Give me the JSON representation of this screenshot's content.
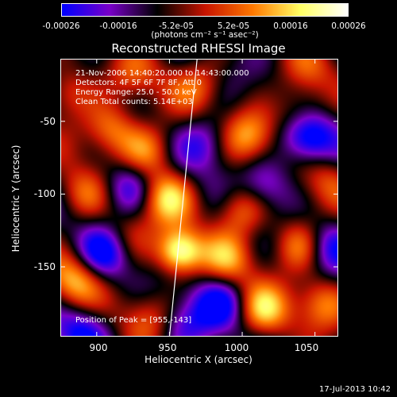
{
  "chart_data": {
    "type": "heatmap",
    "title": "Reconstructed RHESSI Image",
    "xlabel": "Heliocentric X (arcsec)",
    "ylabel": "Heliocentric Y (arcsec)",
    "xlim": [
      875,
      1066
    ],
    "ylim": [
      -198,
      -7
    ],
    "x_ticks": [
      "900",
      "950",
      "1000",
      "1050"
    ],
    "y_ticks": [
      "-50",
      "-100",
      "-150"
    ],
    "colorbar": {
      "ticks": [
        "-0.00026",
        "-0.00016",
        "-5.2e-05",
        "5.2e-05",
        "0.00016",
        "0.00026"
      ],
      "units": "(photons cm⁻² s⁻¹ asec⁻²)",
      "colors": [
        "#0000ff",
        "#7a00c8",
        "#000000",
        "#c81400",
        "#ff7800",
        "#ffff64",
        "#ffffff"
      ]
    },
    "info_lines": [
      "21-Nov-2006 14:40:20.000 to 14:43:00.000",
      "Detectors: 4F 5F 6F 7F 8F, Att 0",
      "Energy Range: 25.0 - 50.0 keV",
      "Clean     Total counts: 5.14E+03"
    ],
    "peak": {
      "x": 955,
      "y": -143,
      "label": "Position of Peak = [955,-143]"
    },
    "blobs": [
      {
        "x": 957,
        "y": -140,
        "v": 1.0
      },
      {
        "x": 948,
        "y": -102,
        "v": 0.7
      },
      {
        "x": 935,
        "y": -70,
        "v": 0.55
      },
      {
        "x": 910,
        "y": -55,
        "v": 0.55
      },
      {
        "x": 1005,
        "y": -60,
        "v": 0.6
      },
      {
        "x": 1040,
        "y": -45,
        "v": 0.45
      },
      {
        "x": 1000,
        "y": -110,
        "v": 0.6
      },
      {
        "x": 990,
        "y": -145,
        "v": 0.5
      },
      {
        "x": 1040,
        "y": -135,
        "v": 0.6
      },
      {
        "x": 1055,
        "y": -175,
        "v": 0.5
      },
      {
        "x": 1015,
        "y": -180,
        "v": 0.65
      },
      {
        "x": 885,
        "y": -160,
        "v": 0.6
      },
      {
        "x": 890,
        "y": -100,
        "v": 0.45
      },
      {
        "x": 935,
        "y": -185,
        "v": 0.4
      },
      {
        "x": 920,
        "y": -130,
        "v": 0.35
      },
      {
        "x": 1060,
        "y": -90,
        "v": 0.35
      },
      {
        "x": 970,
        "y": -25,
        "v": 0.4
      },
      {
        "x": 880,
        "y": -30,
        "v": 0.45
      },
      {
        "x": 925,
        "y": -20,
        "v": 0.35
      },
      {
        "x": 1045,
        "y": -15,
        "v": 0.3
      }
    ],
    "negatives": [
      {
        "x": 1045,
        "y": -60,
        "v": -0.8
      },
      {
        "x": 1015,
        "y": -95,
        "v": -0.5
      },
      {
        "x": 975,
        "y": -65,
        "v": -0.45
      },
      {
        "x": 922,
        "y": -95,
        "v": -0.55
      },
      {
        "x": 905,
        "y": -140,
        "v": -0.6
      },
      {
        "x": 985,
        "y": -175,
        "v": -0.5
      },
      {
        "x": 1060,
        "y": -135,
        "v": -0.5
      },
      {
        "x": 890,
        "y": -195,
        "v": -0.5
      },
      {
        "x": 960,
        "y": -190,
        "v": -0.4
      }
    ],
    "limb_line": {
      "x": [
        969,
        950
      ],
      "y": [
        -7,
        -198
      ]
    }
  },
  "date_stamp": "17-Jul-2013 10:42"
}
